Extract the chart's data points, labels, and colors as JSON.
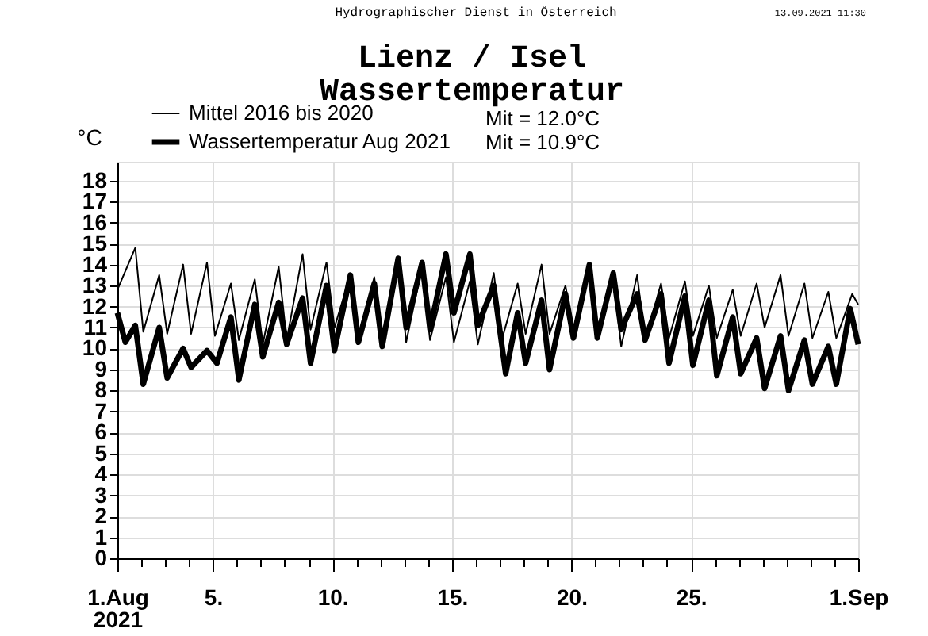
{
  "chart_data": {
    "type": "line",
    "title": "Lienz / Isel",
    "subtitle": "Wassertemperatur",
    "ylabel": "°C",
    "annotations": [
      "Hydrographischer Dienst in Österreich",
      "13.09.2021 11:30",
      "Mit = 12.0°C",
      "Mit = 10.9°C"
    ],
    "x": [
      "2021-08-01T00:00",
      "2021-08-01T18:00",
      "2021-08-02T02:00",
      "2021-08-02T18:00",
      "2021-08-03T02:00",
      "2021-08-03T18:00",
      "2021-08-04T02:00",
      "2021-08-04T18:00",
      "2021-08-05T02:00",
      "2021-08-05T18:00",
      "2021-08-06T02:00",
      "2021-08-06T18:00",
      "2021-08-07T02:00",
      "2021-08-07T18:00",
      "2021-08-08T02:00",
      "2021-08-08T18:00",
      "2021-08-09T02:00",
      "2021-08-09T18:00",
      "2021-08-10T02:00",
      "2021-08-10T18:00",
      "2021-08-11T02:00",
      "2021-08-11T18:00",
      "2021-08-12T02:00",
      "2021-08-12T18:00",
      "2021-08-13T02:00",
      "2021-08-13T18:00",
      "2021-08-14T02:00",
      "2021-08-14T18:00",
      "2021-08-15T02:00",
      "2021-08-15T18:00",
      "2021-08-16T02:00",
      "2021-08-16T18:00",
      "2021-08-17T02:00",
      "2021-08-17T18:00",
      "2021-08-18T02:00",
      "2021-08-18T18:00",
      "2021-08-19T02:00",
      "2021-08-19T18:00",
      "2021-08-20T02:00",
      "2021-08-20T18:00",
      "2021-08-21T02:00",
      "2021-08-21T18:00",
      "2021-08-22T02:00",
      "2021-08-22T18:00",
      "2021-08-23T02:00",
      "2021-08-23T18:00",
      "2021-08-24T02:00",
      "2021-08-24T18:00",
      "2021-08-25T02:00",
      "2021-08-25T18:00",
      "2021-08-26T02:00",
      "2021-08-26T18:00",
      "2021-08-27T02:00",
      "2021-08-27T18:00",
      "2021-08-28T02:00",
      "2021-08-28T18:00",
      "2021-08-29T02:00",
      "2021-08-29T18:00",
      "2021-08-30T02:00",
      "2021-08-30T18:00",
      "2021-08-31T02:00",
      "2021-08-31T18:00",
      "2021-09-01T00:00"
    ],
    "series": [
      {
        "name": "Mittel 2016 bis 2020",
        "color": "#000000",
        "values": [
          12.8,
          14.8,
          10.8,
          13.5,
          10.7,
          14.0,
          10.7,
          14.1,
          10.6,
          13.1,
          10.4,
          13.3,
          10.2,
          13.9,
          10.4,
          14.5,
          10.9,
          14.1,
          11.0,
          13.5,
          10.4,
          13.4,
          10.2,
          14.2,
          10.3,
          13.9,
          10.4,
          13.4,
          10.3,
          13.2,
          10.2,
          13.6,
          10.4,
          13.1,
          10.7,
          14.0,
          10.7,
          13.0,
          10.8,
          13.6,
          11.0,
          13.4,
          10.1,
          13.5,
          10.4,
          13.1,
          10.5,
          13.2,
          10.6,
          13.0,
          10.5,
          12.8,
          10.6,
          13.1,
          11.0,
          13.5,
          10.6,
          13.1,
          10.5,
          12.7,
          10.5,
          12.6,
          12.1
        ]
      },
      {
        "name": "Wassertemperatur Aug 2021",
        "color": "#000000",
        "x": [
          "2021-08-01T00:00",
          "2021-08-01T08:00",
          "2021-08-01T18:00",
          "2021-08-02T02:00",
          "2021-08-02T18:00",
          "2021-08-03T02:00",
          "2021-08-03T18:00",
          "2021-08-04T02:00",
          "2021-08-04T18:00",
          "2021-08-05T04:00",
          "2021-08-05T18:00",
          "2021-08-06T02:00",
          "2021-08-06T18:00",
          "2021-08-07T02:00",
          "2021-08-07T18:00",
          "2021-08-08T02:00",
          "2021-08-08T18:00",
          "2021-08-09T02:00",
          "2021-08-09T18:00",
          "2021-08-10T02:00",
          "2021-08-10T18:00",
          "2021-08-11T02:00",
          "2021-08-11T18:00",
          "2021-08-12T02:00",
          "2021-08-12T18:00",
          "2021-08-13T02:00",
          "2021-08-13T18:00",
          "2021-08-14T02:00",
          "2021-08-14T18:00",
          "2021-08-15T02:00",
          "2021-08-15T18:00",
          "2021-08-16T02:00",
          "2021-08-16T18:00",
          "2021-08-17T06:00",
          "2021-08-17T18:00",
          "2021-08-18T02:00",
          "2021-08-18T18:00",
          "2021-08-19T02:00",
          "2021-08-19T18:00",
          "2021-08-20T02:00",
          "2021-08-20T18:00",
          "2021-08-21T02:00",
          "2021-08-21T18:00",
          "2021-08-22T02:00",
          "2021-08-22T18:00",
          "2021-08-23T02:00",
          "2021-08-23T18:00",
          "2021-08-24T02:00",
          "2021-08-24T18:00",
          "2021-08-25T02:00",
          "2021-08-25T18:00",
          "2021-08-26T02:00",
          "2021-08-26T18:00",
          "2021-08-27T02:00",
          "2021-08-27T18:00",
          "2021-08-28T02:00",
          "2021-08-28T18:00",
          "2021-08-29T02:00",
          "2021-08-29T18:00",
          "2021-08-30T02:00",
          "2021-08-30T18:00",
          "2021-08-31T02:00",
          "2021-08-31T16:00",
          "2021-09-01T00:00"
        ],
        "values": [
          11.7,
          10.3,
          11.1,
          8.3,
          11.0,
          8.6,
          10.0,
          9.1,
          9.9,
          9.3,
          11.5,
          8.5,
          12.1,
          9.6,
          12.2,
          10.2,
          12.4,
          9.3,
          13.0,
          9.9,
          13.5,
          10.3,
          13.1,
          10.1,
          14.3,
          11.0,
          14.1,
          10.9,
          14.5,
          11.7,
          14.5,
          11.1,
          13.0,
          8.8,
          11.7,
          9.3,
          12.3,
          9.0,
          12.6,
          10.5,
          14.0,
          10.5,
          13.6,
          10.9,
          12.6,
          10.4,
          12.6,
          9.3,
          12.5,
          9.2,
          12.3,
          8.7,
          11.5,
          8.8,
          10.5,
          8.1,
          10.6,
          8.0,
          10.4,
          8.3,
          10.1,
          8.3,
          11.9,
          10.2
        ]
      }
    ],
    "xlim": [
      "2021-08-01T00:00",
      "2021-09-01T00:00"
    ],
    "xticks": [
      {
        "value": "2021-08-01",
        "label": "1.Aug\n2021"
      },
      {
        "value": "2021-08-02",
        "label": null
      },
      {
        "value": "2021-08-03",
        "label": null
      },
      {
        "value": "2021-08-04",
        "label": null
      },
      {
        "value": "2021-08-05",
        "label": "5."
      },
      {
        "value": "2021-08-06",
        "label": null
      },
      {
        "value": "2021-08-07",
        "label": null
      },
      {
        "value": "2021-08-08",
        "label": null
      },
      {
        "value": "2021-08-09",
        "label": null
      },
      {
        "value": "2021-08-10",
        "label": "10."
      },
      {
        "value": "2021-08-11",
        "label": null
      },
      {
        "value": "2021-08-12",
        "label": null
      },
      {
        "value": "2021-08-13",
        "label": null
      },
      {
        "value": "2021-08-14",
        "label": null
      },
      {
        "value": "2021-08-15",
        "label": "15."
      },
      {
        "value": "2021-08-16",
        "label": null
      },
      {
        "value": "2021-08-17",
        "label": null
      },
      {
        "value": "2021-08-18",
        "label": null
      },
      {
        "value": "2021-08-19",
        "label": null
      },
      {
        "value": "2021-08-20",
        "label": "20."
      },
      {
        "value": "2021-08-21",
        "label": null
      },
      {
        "value": "2021-08-22",
        "label": null
      },
      {
        "value": "2021-08-23",
        "label": null
      },
      {
        "value": "2021-08-24",
        "label": null
      },
      {
        "value": "2021-08-25",
        "label": "25."
      },
      {
        "value": "2021-08-26",
        "label": null
      },
      {
        "value": "2021-08-27",
        "label": null
      },
      {
        "value": "2021-08-28",
        "label": null
      },
      {
        "value": "2021-08-29",
        "label": null
      },
      {
        "value": "2021-08-30",
        "label": null
      },
      {
        "value": "2021-08-31",
        "label": null
      },
      {
        "value": "2021-09-01",
        "label": "1.Sep"
      }
    ],
    "ylim": [
      0,
      18.9
    ],
    "yticks": [
      0,
      1,
      2,
      3,
      4,
      5,
      6,
      7,
      8,
      9,
      10,
      11,
      12,
      13,
      14,
      15,
      16,
      17,
      18
    ],
    "grid": true,
    "legend": "top left",
    "marker": "none",
    "line_style": "solid"
  }
}
